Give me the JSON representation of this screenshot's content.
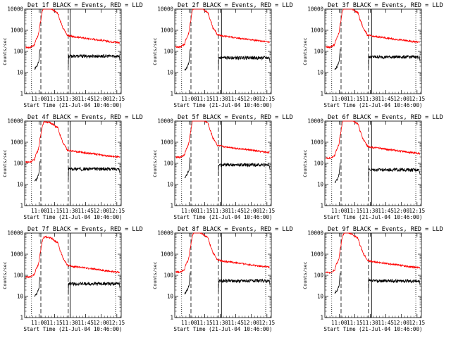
{
  "chart_data": {
    "type": "line",
    "layout": "3x3 grid",
    "shared": {
      "xlabel": "Start Time (21-Jul-04 10:46:00)",
      "ylabel": "Counts/sec",
      "x_tick_labels": [
        "11:00",
        "11:15",
        "11:30",
        "11:45",
        "12:00",
        "12:15"
      ],
      "y_tick_labels": [
        "1",
        "10",
        "100",
        "1000",
        "10000"
      ],
      "yscale": "log",
      "ylim": [
        1,
        10000
      ],
      "colors": {
        "events": "#000000",
        "lld": "#ff0000",
        "axes": "#000000"
      },
      "lld_shape_x": [
        10.78,
        10.84,
        10.88,
        10.93,
        10.95,
        10.98,
        11.0,
        11.03,
        11.05,
        11.08,
        11.1,
        11.14,
        11.18,
        11.22,
        11.26,
        11.3,
        11.33,
        11.38,
        11.45,
        11.55,
        11.65,
        11.75,
        11.85,
        11.95,
        12.05,
        12.15,
        12.25,
        12.3
      ],
      "lld_shape": [
        1.0,
        0.95,
        1.05,
        1.3,
        2.2,
        3.2,
        5.0,
        18.0,
        45.0,
        75.0,
        80.0,
        75.0,
        70.0,
        60.0,
        48.0,
        42.0,
        20.0,
        8.0,
        3.6,
        3.1,
        2.9,
        2.6,
        2.4,
        2.2,
        2.0,
        1.8,
        1.7,
        1.6
      ],
      "events_shape_x": [
        10.93,
        10.97,
        11.0,
        11.02
      ],
      "events_shape": [
        0.25,
        0.35,
        0.6,
        2.5
      ]
    },
    "panels": [
      {
        "title": "Det 1f BLACK = Events, RED = LLD",
        "lld_base": 160,
        "events_level": 60,
        "dotted_x": [
          10.88,
          12.23
        ],
        "dashed_x": [
          11.03,
          11.47
        ],
        "solid_x": [
          11.5
        ]
      },
      {
        "title": "Det 2f BLACK = Events, RED = LLD",
        "lld_base": 170,
        "events_level": 50,
        "dotted_x": [
          10.88,
          12.23
        ],
        "dashed_x": [
          11.03,
          11.47
        ],
        "solid_x": [
          11.52
        ]
      },
      {
        "title": "Det 3f BLACK = Events, RED = LLD",
        "lld_base": 165,
        "events_level": 55,
        "dotted_x": [
          10.88,
          12.23
        ],
        "dashed_x": [
          11.03,
          11.47
        ],
        "solid_x": [
          11.52
        ]
      },
      {
        "title": "Det 4f BLACK = Events, RED = LLD",
        "lld_base": 120,
        "events_level": 55,
        "dotted_x": [
          10.88,
          12.23
        ],
        "dashed_x": [
          11.03,
          11.47
        ],
        "solid_x": [
          11.5
        ]
      },
      {
        "title": "Det 5f BLACK = Events, RED = LLD",
        "lld_base": 200,
        "events_level": 85,
        "dotted_x": [
          10.88,
          12.23
        ],
        "dashed_x": [
          11.03,
          11.47
        ],
        "solid_x": [
          11.52
        ]
      },
      {
        "title": "Det 6f BLACK = Events, RED = LLD",
        "lld_base": 180,
        "events_level": 50,
        "dotted_x": [
          10.88,
          12.23
        ],
        "dashed_x": [
          11.03,
          11.47
        ],
        "solid_x": [
          11.52
        ]
      },
      {
        "title": "Det 7f BLACK = Events, RED = LLD",
        "lld_base": 85,
        "events_level": 40,
        "dotted_x": [
          10.88,
          12.23
        ],
        "dashed_x": [
          11.03,
          11.47
        ],
        "solid_x": [
          11.5
        ]
      },
      {
        "title": "Det 8f BLACK = Events, RED = LLD",
        "lld_base": 150,
        "events_level": 55,
        "dotted_x": [
          10.88,
          12.23
        ],
        "dashed_x": [
          11.03,
          11.47
        ],
        "solid_x": [
          11.52
        ]
      },
      {
        "title": "Det 9f BLACK = Events, RED = LLD",
        "lld_base": 140,
        "events_level": 55,
        "dotted_x": [
          10.88,
          12.23
        ],
        "dashed_x": [
          11.03,
          11.47
        ],
        "solid_x": [
          11.52
        ]
      }
    ]
  }
}
